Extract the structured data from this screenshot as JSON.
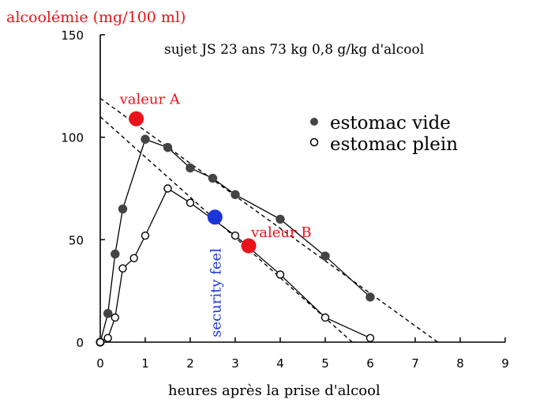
{
  "chart_data": {
    "type": "scatter",
    "ylabel": "alcoolémie (mg/100 ml)",
    "xlabel": "heures après la prise d'alcool",
    "subtitle": "sujet JS 23 ans 73 kg 0,8 g/kg d'alcool",
    "xlim": [
      0,
      9
    ],
    "ylim": [
      0,
      150
    ],
    "x_ticks": [
      "0",
      "1",
      "2",
      "3",
      "4",
      "5",
      "6",
      "7",
      "8",
      "9"
    ],
    "y_ticks": [
      "0",
      "50",
      "100",
      "150"
    ],
    "grid": false,
    "legend_position": "top-right",
    "series": [
      {
        "name": "estomac vide",
        "marker": "filled-circle",
        "color": "#444444",
        "x": [
          0,
          0.17,
          0.33,
          0.5,
          1.0,
          1.5,
          2.0,
          2.5,
          3.0,
          4.0,
          5.0,
          6.0
        ],
        "y": [
          0,
          14,
          43,
          65,
          99,
          95,
          85,
          80,
          72,
          60,
          42,
          22
        ]
      },
      {
        "name": "estomac plein",
        "marker": "open-circle",
        "color": "#000000",
        "x": [
          0,
          0.17,
          0.33,
          0.5,
          0.75,
          1.0,
          1.5,
          2.0,
          3.0,
          4.0,
          5.0,
          6.0
        ],
        "y": [
          0,
          2,
          12,
          36,
          41,
          52,
          75,
          68,
          52,
          33,
          12,
          2
        ]
      }
    ],
    "trend_lines": [
      {
        "style": "dashed",
        "x": [
          0,
          7.5
        ],
        "y": [
          119,
          0
        ]
      },
      {
        "style": "dashed",
        "x": [
          0,
          5.6
        ],
        "y": [
          110,
          0
        ]
      }
    ],
    "annotations": [
      {
        "label": "valeur A",
        "x": 0.8,
        "y": 109,
        "color": "#e8141b",
        "label_position": "above"
      },
      {
        "label": "valeur B",
        "x": 3.3,
        "y": 47,
        "color": "#e8141b",
        "label_position": "above-right"
      },
      {
        "label": "security feel",
        "x": 2.55,
        "y": 61,
        "color": "#1b35d8",
        "label_orientation": "vertical"
      }
    ]
  }
}
